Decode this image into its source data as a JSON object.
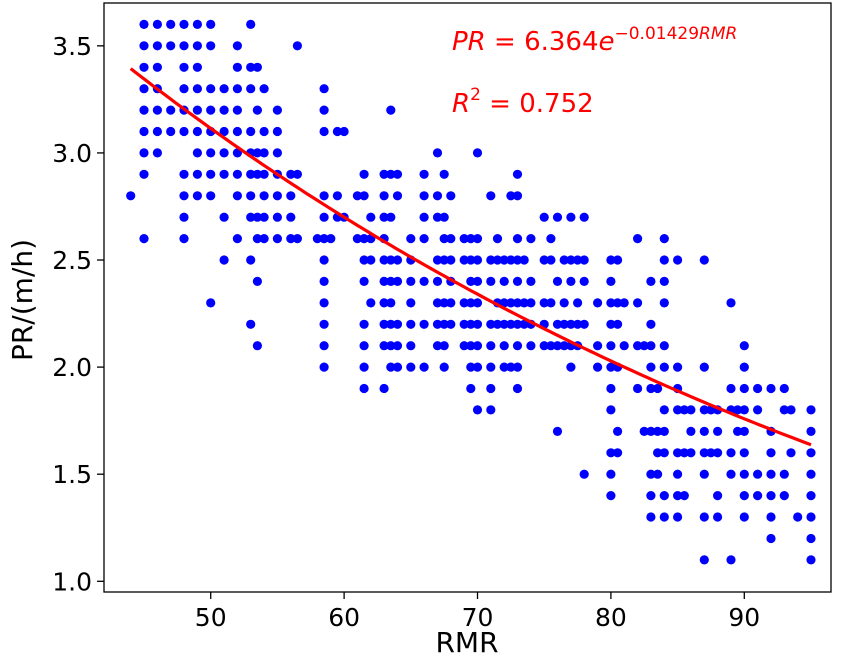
{
  "chart_data": {
    "type": "scatter",
    "title": "",
    "xlabel": "RMR",
    "ylabel": "PR/(m/h)",
    "xlim": [
      42,
      96.5
    ],
    "ylim": [
      0.95,
      3.7
    ],
    "xticks": [
      50,
      60,
      70,
      80,
      90
    ],
    "yticks": [
      1.0,
      1.5,
      2.0,
      2.5,
      3.0,
      3.5
    ],
    "xtick_labels": [
      "50",
      "60",
      "70",
      "80",
      "90"
    ],
    "ytick_labels": [
      "1.0",
      "1.5",
      "2.0",
      "2.5",
      "3.0",
      "3.5"
    ],
    "grid": false,
    "point_color": "#0000ff",
    "fit_color": "#ff0000",
    "fit": {
      "name": "exponential fit",
      "a": 6.364,
      "b": -0.01429,
      "x_range": [
        44,
        95
      ]
    },
    "annotations": {
      "equation_lhs": "PR",
      "equation_mid": " = 6.364",
      "equation_e": "e",
      "equation_exp": "−0.01429",
      "equation_exp_var": "RMR",
      "r2_sym": "R",
      "r2_sup": "2",
      "r2_val": " = 0.752"
    },
    "columns": [
      {
        "x": 44,
        "y": [
          2.8
        ]
      },
      {
        "x": 45,
        "y": [
          3.6,
          3.5,
          3.4,
          3.3,
          3.2,
          3.1,
          3.0,
          2.9,
          2.6
        ]
      },
      {
        "x": 46,
        "y": [
          3.6,
          3.5,
          3.4,
          3.3,
          3.2,
          3.1,
          3.0
        ]
      },
      {
        "x": 47,
        "y": [
          3.6,
          3.5,
          3.2,
          3.1
        ]
      },
      {
        "x": 48,
        "y": [
          3.6,
          3.5,
          3.4,
          3.3,
          3.2,
          3.1,
          2.9,
          2.8,
          2.7,
          2.6
        ]
      },
      {
        "x": 49,
        "y": [
          3.6,
          3.5,
          3.4,
          3.3,
          3.2,
          3.1,
          3.0,
          2.9,
          2.8
        ]
      },
      {
        "x": 50,
        "y": [
          3.6,
          3.5,
          3.3,
          3.2,
          3.1,
          3.0,
          2.9,
          2.8,
          2.3
        ]
      },
      {
        "x": 51,
        "y": [
          3.3,
          3.2,
          3.1,
          3.0,
          2.9,
          2.7,
          2.5
        ]
      },
      {
        "x": 52,
        "y": [
          3.5,
          3.4,
          3.3,
          3.2,
          3.1,
          3.0,
          2.9,
          2.8,
          2.6
        ]
      },
      {
        "x": 53,
        "y": [
          3.6,
          3.4,
          3.3,
          3.1,
          3.0,
          2.9,
          2.8,
          2.7,
          2.5,
          2.2
        ]
      },
      {
        "x": 53.5,
        "y": [
          3.4,
          3.2,
          3.0,
          2.9,
          2.7,
          2.6,
          2.4,
          2.1
        ]
      },
      {
        "x": 54,
        "y": [
          3.3,
          3.1,
          3.0,
          2.9,
          2.8,
          2.7,
          2.6
        ]
      },
      {
        "x": 55,
        "y": [
          3.2,
          3.1,
          3.0,
          2.9,
          2.8,
          2.7,
          2.6
        ]
      },
      {
        "x": 56,
        "y": [
          2.9,
          2.8,
          2.7,
          2.6
        ]
      },
      {
        "x": 56.5,
        "y": [
          3.5,
          2.9,
          2.6
        ]
      },
      {
        "x": 58,
        "y": [
          2.6
        ]
      },
      {
        "x": 58.5,
        "y": [
          3.3,
          3.2,
          3.1,
          2.8,
          2.7,
          2.6,
          2.5,
          2.4,
          2.3,
          2.2,
          2.1,
          2.0
        ]
      },
      {
        "x": 59,
        "y": [
          2.6
        ]
      },
      {
        "x": 59.5,
        "y": [
          3.1,
          2.8,
          2.7
        ]
      },
      {
        "x": 60,
        "y": [
          3.1,
          2.7
        ]
      },
      {
        "x": 61,
        "y": [
          2.8,
          2.6
        ]
      },
      {
        "x": 61.5,
        "y": [
          2.9,
          2.8,
          2.6,
          2.5,
          2.4,
          2.2,
          2.1,
          2.0,
          1.9
        ]
      },
      {
        "x": 62,
        "y": [
          2.7,
          2.6,
          2.5,
          2.3
        ]
      },
      {
        "x": 63,
        "y": [
          2.9,
          2.8,
          2.7,
          2.6,
          2.5,
          2.4,
          2.3,
          2.2,
          2.1,
          1.9
        ]
      },
      {
        "x": 63.5,
        "y": [
          3.2,
          2.9,
          2.7,
          2.5,
          2.4,
          2.3,
          2.2,
          2.1,
          2.0
        ]
      },
      {
        "x": 64,
        "y": [
          2.9,
          2.8,
          2.5,
          2.4,
          2.2,
          2.1,
          2.0
        ]
      },
      {
        "x": 65,
        "y": [
          2.6,
          2.5,
          2.4,
          2.3,
          2.2,
          2.1,
          2.0
        ]
      },
      {
        "x": 66,
        "y": [
          2.9,
          2.8,
          2.7,
          2.6,
          2.4,
          2.2,
          2.0
        ]
      },
      {
        "x": 67,
        "y": [
          3.0,
          2.8,
          2.7,
          2.5,
          2.4,
          2.3,
          2.2,
          2.1
        ]
      },
      {
        "x": 67.5,
        "y": [
          2.9,
          2.7,
          2.6,
          2.5,
          2.3,
          2.2,
          2.1,
          2.0
        ]
      },
      {
        "x": 68,
        "y": [
          2.8,
          2.6,
          2.5,
          2.4,
          2.3,
          2.2
        ]
      },
      {
        "x": 69,
        "y": [
          2.6,
          2.5,
          2.3,
          2.2,
          2.1
        ]
      },
      {
        "x": 69.5,
        "y": [
          2.6,
          2.5,
          2.4,
          2.3,
          2.2,
          2.1,
          2.0,
          1.9
        ]
      },
      {
        "x": 70,
        "y": [
          3.0,
          2.6,
          2.5,
          2.4,
          2.3,
          2.2,
          2.1,
          2.0,
          1.8
        ]
      },
      {
        "x": 71,
        "y": [
          2.8,
          2.5,
          2.4,
          2.2,
          2.1,
          2.0,
          1.9,
          1.8
        ]
      },
      {
        "x": 71.5,
        "y": [
          2.6,
          2.5,
          2.3,
          2.2
        ]
      },
      {
        "x": 72,
        "y": [
          2.5,
          2.4,
          2.3,
          2.2,
          2.1,
          2.0
        ]
      },
      {
        "x": 72.5,
        "y": [
          2.8,
          2.5,
          2.3,
          2.2,
          2.0
        ]
      },
      {
        "x": 73,
        "y": [
          2.9,
          2.8,
          2.6,
          2.5,
          2.4,
          2.3,
          2.2,
          2.1,
          2.0,
          1.9
        ]
      },
      {
        "x": 73.5,
        "y": [
          2.5,
          2.3,
          2.2
        ]
      },
      {
        "x": 74,
        "y": [
          2.6,
          2.4,
          2.3,
          2.2,
          2.1
        ]
      },
      {
        "x": 75,
        "y": [
          2.7,
          2.5,
          2.3,
          2.2,
          2.1
        ]
      },
      {
        "x": 75.5,
        "y": [
          2.6,
          2.5,
          2.3,
          2.1
        ]
      },
      {
        "x": 76,
        "y": [
          2.7,
          2.4,
          2.2,
          2.1,
          1.7
        ]
      },
      {
        "x": 76.5,
        "y": [
          2.5,
          2.3,
          2.2,
          2.1
        ]
      },
      {
        "x": 77,
        "y": [
          2.7,
          2.5,
          2.4,
          2.2,
          2.1,
          2.0
        ]
      },
      {
        "x": 77.5,
        "y": [
          2.5,
          2.3,
          2.2,
          2.1
        ]
      },
      {
        "x": 78,
        "y": [
          2.7,
          2.5,
          2.4,
          2.2,
          1.5
        ]
      },
      {
        "x": 79,
        "y": [
          2.3,
          2.1,
          2.0
        ]
      },
      {
        "x": 80,
        "y": [
          2.5,
          2.4,
          2.3,
          2.2,
          2.1,
          2.0,
          1.9,
          1.8,
          1.6,
          1.5,
          1.4
        ]
      },
      {
        "x": 80.5,
        "y": [
          2.5,
          2.3,
          2.2,
          2.0,
          1.7,
          1.6
        ]
      },
      {
        "x": 81,
        "y": [
          2.3,
          2.1
        ]
      },
      {
        "x": 82,
        "y": [
          2.6,
          2.3,
          2.1,
          1.9
        ]
      },
      {
        "x": 82.5,
        "y": [
          2.1,
          1.7
        ]
      },
      {
        "x": 83,
        "y": [
          2.4,
          2.2,
          2.1,
          2.0,
          1.9,
          1.7,
          1.5,
          1.4,
          1.3
        ]
      },
      {
        "x": 83.5,
        "y": [
          1.9,
          1.7,
          1.6,
          1.5
        ]
      },
      {
        "x": 84,
        "y": [
          2.6,
          2.5,
          2.4,
          2.3,
          2.1,
          2.0,
          1.8,
          1.7,
          1.6,
          1.4,
          1.3
        ]
      },
      {
        "x": 85,
        "y": [
          2.5,
          2.0,
          1.9,
          1.8,
          1.6,
          1.5,
          1.4,
          1.3
        ]
      },
      {
        "x": 85.5,
        "y": [
          1.8,
          1.6,
          1.4
        ]
      },
      {
        "x": 86,
        "y": [
          1.8,
          1.7,
          1.6
        ]
      },
      {
        "x": 87,
        "y": [
          2.5,
          2.0,
          1.8,
          1.7,
          1.6,
          1.5,
          1.3,
          1.1
        ]
      },
      {
        "x": 87.5,
        "y": [
          1.8,
          1.6
        ]
      },
      {
        "x": 88,
        "y": [
          1.8,
          1.7,
          1.6,
          1.4,
          1.3
        ]
      },
      {
        "x": 89,
        "y": [
          2.3,
          1.9,
          1.8,
          1.6,
          1.5,
          1.1
        ]
      },
      {
        "x": 89.5,
        "y": [
          1.8,
          1.7
        ]
      },
      {
        "x": 90,
        "y": [
          2.1,
          2.0,
          1.9,
          1.8,
          1.7,
          1.6,
          1.5,
          1.4,
          1.3
        ]
      },
      {
        "x": 91,
        "y": [
          1.9,
          1.8,
          1.5,
          1.4
        ]
      },
      {
        "x": 92,
        "y": [
          1.9,
          1.7,
          1.6,
          1.5,
          1.4,
          1.3,
          1.2
        ]
      },
      {
        "x": 93,
        "y": [
          1.9,
          1.8,
          1.5,
          1.4
        ]
      },
      {
        "x": 93.5,
        "y": [
          1.8,
          1.6
        ]
      },
      {
        "x": 94,
        "y": [
          1.3
        ]
      },
      {
        "x": 95,
        "y": [
          1.8,
          1.7,
          1.6,
          1.5,
          1.4,
          1.3,
          1.2,
          1.1
        ]
      }
    ]
  }
}
